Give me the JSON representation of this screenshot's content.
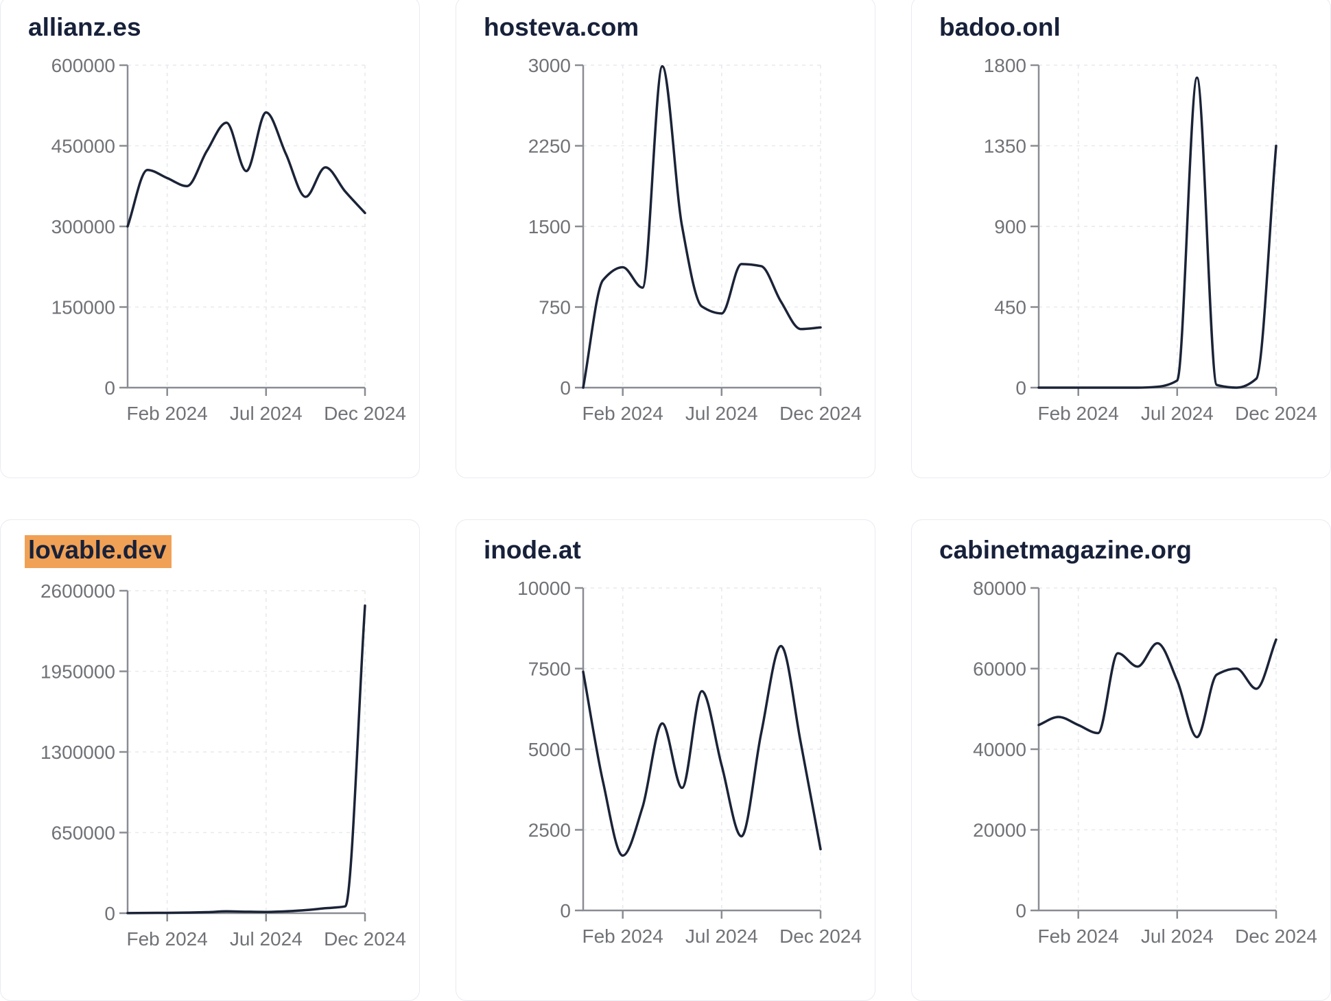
{
  "styles": {
    "page_background": "#ffffff",
    "card_background": "#ffffff",
    "card_border_color": "#e9ebf2",
    "title_color": "#18213a",
    "tick_label_color": "#707277",
    "axis_color": "#898c92",
    "grid_color": "#e8e9ed",
    "line_color": "#1b2337",
    "highlight_color": "#f0a156"
  },
  "chart_data": [
    {
      "type": "line",
      "title": "allianz.es",
      "title_highlight": false,
      "ylim": [
        0,
        600000
      ],
      "y_ticks": [
        0,
        150000,
        300000,
        450000,
        600000
      ],
      "x_tick_labels": [
        "Feb 2024",
        "Jul 2024",
        "Dec 2024"
      ],
      "x_tick_indices": [
        2,
        7,
        12
      ],
      "values": [
        300000,
        405000,
        390000,
        375000,
        440000,
        493000,
        403000,
        512000,
        435000,
        355000,
        410000,
        365000,
        325000
      ]
    },
    {
      "type": "line",
      "title": "hosteva.com",
      "title_highlight": false,
      "ylim": [
        0,
        3000
      ],
      "y_ticks": [
        0,
        750,
        1500,
        2250,
        3000
      ],
      "x_tick_labels": [
        "Feb 2024",
        "Jul 2024",
        "Dec 2024"
      ],
      "x_tick_indices": [
        2,
        7,
        12
      ],
      "values": [
        0,
        1000,
        1120,
        930,
        2990,
        1500,
        755,
        690,
        1150,
        1130,
        800,
        545,
        560
      ]
    },
    {
      "type": "line",
      "title": "badoo.onl",
      "title_highlight": false,
      "ylim": [
        0,
        1800
      ],
      "y_ticks": [
        0,
        450,
        900,
        1350,
        1800
      ],
      "x_tick_labels": [
        "Feb 2024",
        "Jul 2024",
        "Dec 2024"
      ],
      "x_tick_indices": [
        2,
        7,
        12
      ],
      "values": [
        0,
        0,
        0,
        0,
        0,
        0,
        5,
        40,
        1730,
        15,
        0,
        50,
        1350
      ]
    },
    {
      "type": "line",
      "title": "lovable.dev",
      "title_highlight": true,
      "ylim": [
        0,
        2600000
      ],
      "y_ticks": [
        0,
        650000,
        1300000,
        1950000,
        2600000
      ],
      "x_tick_labels": [
        "Feb 2024",
        "Jul 2024",
        "Dec 2024"
      ],
      "x_tick_indices": [
        2,
        7,
        12
      ],
      "values": [
        1000,
        2000,
        3000,
        5000,
        8000,
        15000,
        12000,
        10000,
        15000,
        25000,
        40000,
        55000,
        2480000
      ]
    },
    {
      "type": "line",
      "title": "inode.at",
      "title_highlight": false,
      "ylim": [
        0,
        10000
      ],
      "y_ticks": [
        0,
        2500,
        5000,
        7500,
        10000
      ],
      "x_tick_labels": [
        "Feb 2024",
        "Jul 2024",
        "Dec 2024"
      ],
      "x_tick_indices": [
        2,
        7,
        12
      ],
      "values": [
        7400,
        4000,
        1700,
        3200,
        5800,
        3800,
        6800,
        4500,
        2300,
        5500,
        8200,
        5200,
        1900
      ]
    },
    {
      "type": "line",
      "title": "cabinetmagazine.org",
      "title_highlight": false,
      "ylim": [
        0,
        80000
      ],
      "y_ticks": [
        0,
        20000,
        40000,
        60000,
        80000
      ],
      "x_tick_labels": [
        "Feb 2024",
        "Jul 2024",
        "Dec 2024"
      ],
      "x_tick_indices": [
        2,
        7,
        12
      ],
      "values": [
        46000,
        48000,
        46000,
        44000,
        63800,
        60500,
        66300,
        57000,
        43000,
        58500,
        60000,
        55000,
        67200
      ]
    }
  ]
}
